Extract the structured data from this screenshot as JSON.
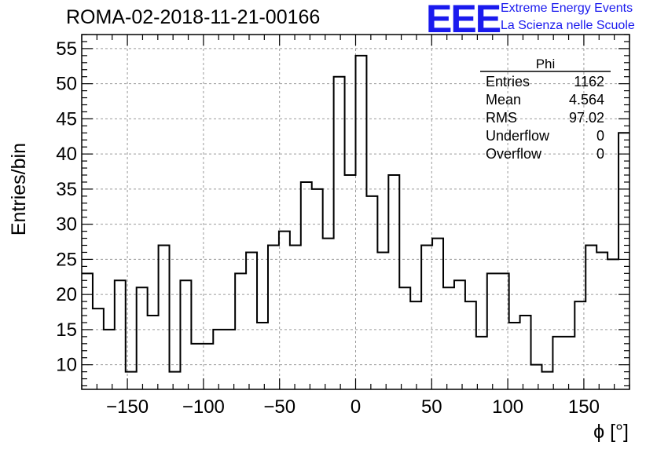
{
  "header": {
    "title": "ROMA-02-2018-11-21-00166",
    "logo_text": "EEE",
    "logo_line1": "Extreme Energy Events",
    "logo_line2": "La Scienza nelle Scuole",
    "logo_color": "#1a1aee"
  },
  "stats_box": {
    "name": "Phi",
    "rows": [
      {
        "label": "Entries",
        "value": "1162"
      },
      {
        "label": "Mean",
        "value": "4.564"
      },
      {
        "label": "RMS",
        "value": "97.02"
      },
      {
        "label": "Underflow",
        "value": "0"
      },
      {
        "label": "Overflow",
        "value": "0"
      }
    ]
  },
  "chart_data": {
    "type": "histogram",
    "xlabel": "ϕ [°]",
    "ylabel": "Entries/bin",
    "xlim": [
      -180,
      180
    ],
    "ylim": [
      6.5,
      57
    ],
    "bin_edges_start": -180,
    "bin_width": 7.2,
    "values": [
      23,
      18,
      15,
      22,
      9,
      21,
      17,
      27,
      9,
      22,
      13,
      13,
      15,
      15,
      23,
      26,
      16,
      27,
      29,
      27,
      36,
      35,
      28,
      51,
      37,
      54,
      34,
      26,
      37,
      21,
      19,
      27,
      28,
      21,
      22,
      19,
      14,
      23,
      23,
      16,
      17,
      10,
      9,
      14,
      14,
      19,
      27,
      26,
      25,
      43
    ],
    "x_ticks": [
      -150,
      -100,
      -50,
      0,
      50,
      100,
      150
    ],
    "x_tick_labels": [
      "−150",
      "−100",
      "−50",
      "0",
      "50",
      "100",
      "150"
    ],
    "y_ticks": [
      10,
      15,
      20,
      25,
      30,
      35,
      40,
      45,
      50,
      55
    ],
    "y_tick_labels": [
      "10",
      "15",
      "20",
      "25",
      "30",
      "35",
      "40",
      "45",
      "50",
      "55"
    ],
    "grid": true,
    "line_color": "#000000",
    "grid_color": "#9a9a9a"
  }
}
